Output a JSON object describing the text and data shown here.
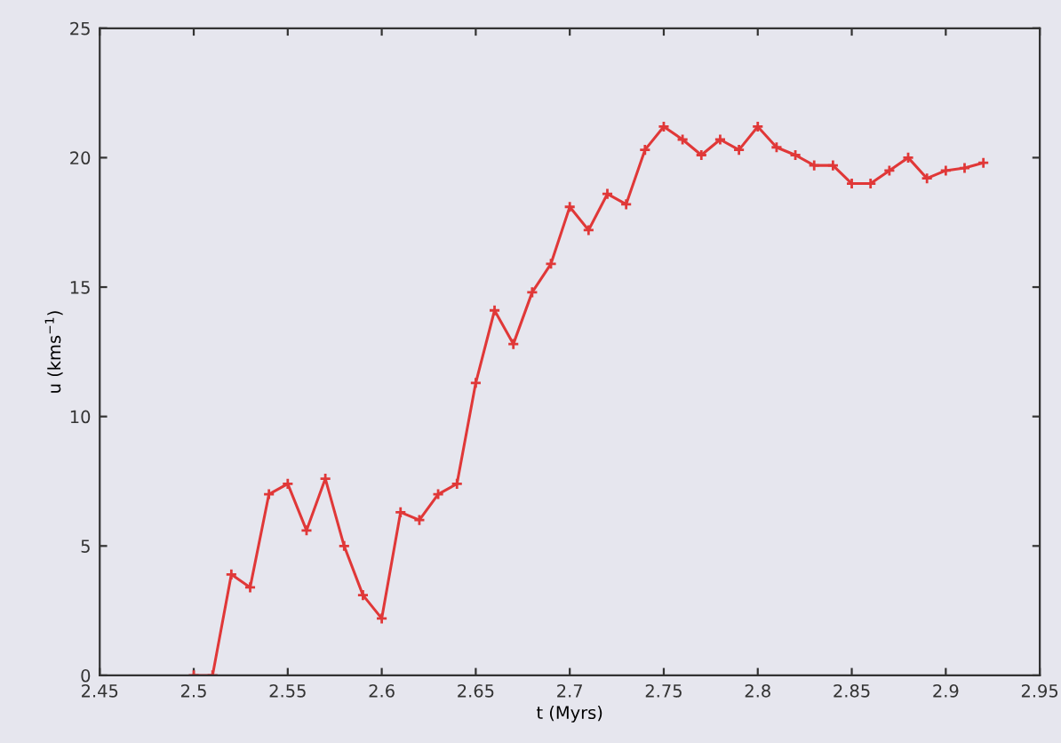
{
  "chart_data": {
    "type": "line",
    "xlabel": "t (Myrs)",
    "ylabel": "u (kms$^{−1}$)",
    "x": [
      2.5,
      2.51,
      2.52,
      2.53,
      2.54,
      2.55,
      2.56,
      2.57,
      2.58,
      2.59,
      2.6,
      2.61,
      2.62,
      2.63,
      2.64,
      2.65,
      2.66,
      2.67,
      2.68,
      2.69,
      2.7,
      2.71,
      2.72,
      2.73,
      2.74,
      2.75,
      2.76,
      2.77,
      2.78,
      2.79,
      2.8,
      2.81,
      2.82,
      2.83,
      2.84,
      2.85,
      2.86,
      2.87,
      2.88,
      2.89,
      2.9,
      2.91,
      2.92
    ],
    "series": [
      {
        "color": "#e03838",
        "values": [
          0,
          0,
          3.9,
          3.4,
          7.0,
          7.4,
          5.6,
          7.6,
          5.0,
          3.1,
          2.2,
          6.3,
          6.0,
          7.0,
          7.4,
          11.3,
          14.1,
          12.8,
          14.8,
          15.9,
          18.1,
          17.2,
          18.6,
          18.2,
          20.3,
          21.2,
          20.7,
          20.1,
          20.7,
          20.3,
          21.2,
          20.4,
          20.1,
          19.7,
          19.7,
          19.0,
          19.0,
          19.5,
          20.0,
          19.2,
          19.5,
          19.6,
          19.8
        ]
      }
    ],
    "xlim": [
      2.45,
      2.95
    ],
    "xticks": [
      2.45,
      2.5,
      2.55,
      2.6,
      2.65,
      2.7,
      2.75,
      2.8,
      2.85,
      2.9,
      2.95
    ],
    "ylim": [
      0,
      25
    ],
    "yticks": [
      0,
      5,
      10,
      15,
      20,
      25
    ],
    "marker": "cross",
    "line_style": "solid",
    "grid": false
  }
}
